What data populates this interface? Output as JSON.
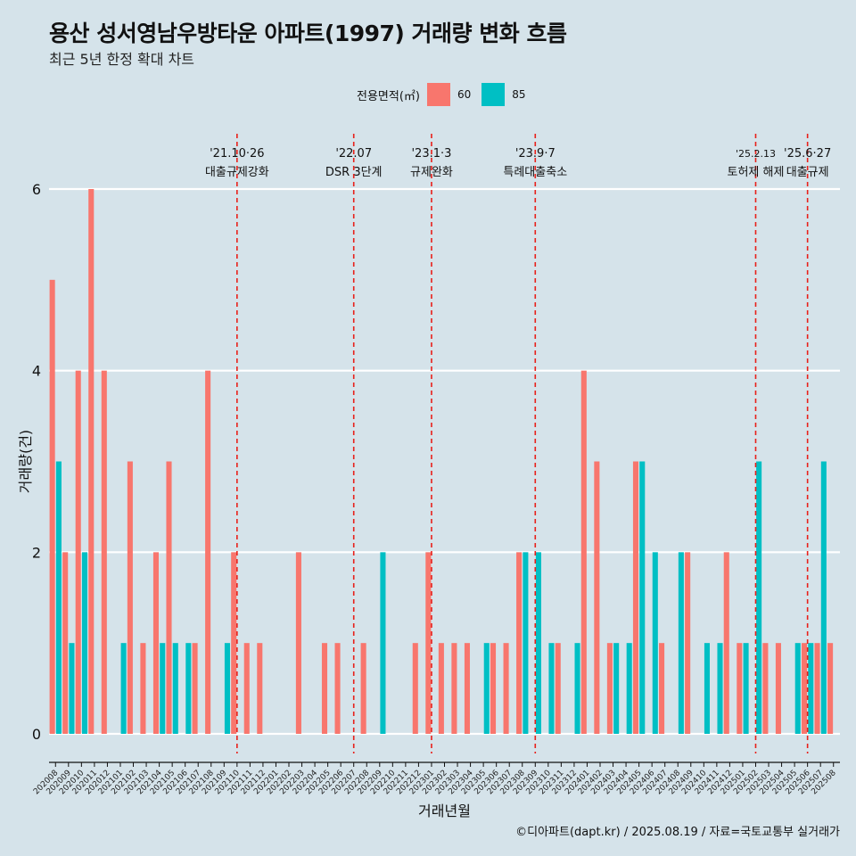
{
  "title": "용산 성서영남우방타운 아파트(1997) 거래량 변화 흐름",
  "subtitle": "최근 5년 한정 확대 차트",
  "caption": "©디아파트(dapt.kr) / 2025.08.19 / 자료=국토교통부 실거래가",
  "legend": {
    "title": "전용면적(㎡)",
    "items": [
      {
        "label": "60",
        "color": "#f8766d"
      },
      {
        "label": "85",
        "color": "#00bfc4"
      }
    ]
  },
  "chart_data": {
    "type": "bar",
    "xlabel": "거래년월",
    "ylabel": "거래량(건)",
    "ylim": [
      0,
      6
    ],
    "yticks": [
      0,
      2,
      4,
      6
    ],
    "categories": [
      "202008",
      "202009",
      "202010",
      "202011",
      "202012",
      "202101",
      "202102",
      "202103",
      "202104",
      "202105",
      "202106",
      "202107",
      "202108",
      "202109",
      "202110",
      "202111",
      "202112",
      "202201",
      "202202",
      "202203",
      "202204",
      "202205",
      "202206",
      "202207",
      "202208",
      "202209",
      "202210",
      "202211",
      "202212",
      "202301",
      "202302",
      "202303",
      "202304",
      "202305",
      "202306",
      "202307",
      "202308",
      "202309",
      "202310",
      "202311",
      "202312",
      "202401",
      "202402",
      "202403",
      "202404",
      "202405",
      "202406",
      "202407",
      "202408",
      "202409",
      "202410",
      "202411",
      "202412",
      "202501",
      "202502",
      "202503",
      "202504",
      "202505",
      "202506",
      "202507",
      "202508"
    ],
    "series": [
      {
        "name": "60",
        "color": "#f8766d",
        "values": [
          5,
          2,
          4,
          6,
          4,
          0,
          3,
          1,
          2,
          3,
          0,
          1,
          4,
          0,
          2,
          1,
          1,
          0,
          0,
          2,
          0,
          1,
          1,
          0,
          1,
          0,
          0,
          0,
          1,
          2,
          1,
          1,
          1,
          0,
          1,
          1,
          2,
          0,
          0,
          1,
          0,
          4,
          3,
          1,
          0,
          3,
          0,
          1,
          0,
          2,
          0,
          0,
          2,
          1,
          0,
          1,
          1,
          0,
          1,
          1,
          1
        ]
      },
      {
        "name": "85",
        "color": "#00bfc4",
        "values": [
          3,
          1,
          2,
          0,
          0,
          1,
          0,
          0,
          1,
          1,
          1,
          0,
          0,
          1,
          0,
          0,
          0,
          0,
          0,
          0,
          0,
          0,
          0,
          0,
          0,
          2,
          0,
          0,
          0,
          0,
          0,
          0,
          0,
          1,
          0,
          0,
          2,
          2,
          1,
          0,
          1,
          0,
          0,
          1,
          1,
          3,
          2,
          0,
          2,
          0,
          1,
          1,
          0,
          1,
          3,
          0,
          0,
          1,
          1,
          3,
          0
        ]
      }
    ],
    "annotations": [
      {
        "at": "202110",
        "date": "'21.10·26",
        "label": "대출규제강화"
      },
      {
        "at": "202207",
        "date": "'22.07",
        "label": "DSR 3단계"
      },
      {
        "at": "202301",
        "date": "'23.1·3",
        "label": "규제완화"
      },
      {
        "at": "202309",
        "date": "'23.9·7",
        "label": "특례대출축소"
      },
      {
        "at": "202502",
        "date": "'25.2.13",
        "label": "토허제 해제"
      },
      {
        "at": "202506",
        "date": "'25.6·27",
        "label": "대출규제"
      }
    ],
    "annotation_color": "#e8201a",
    "grid": true
  }
}
